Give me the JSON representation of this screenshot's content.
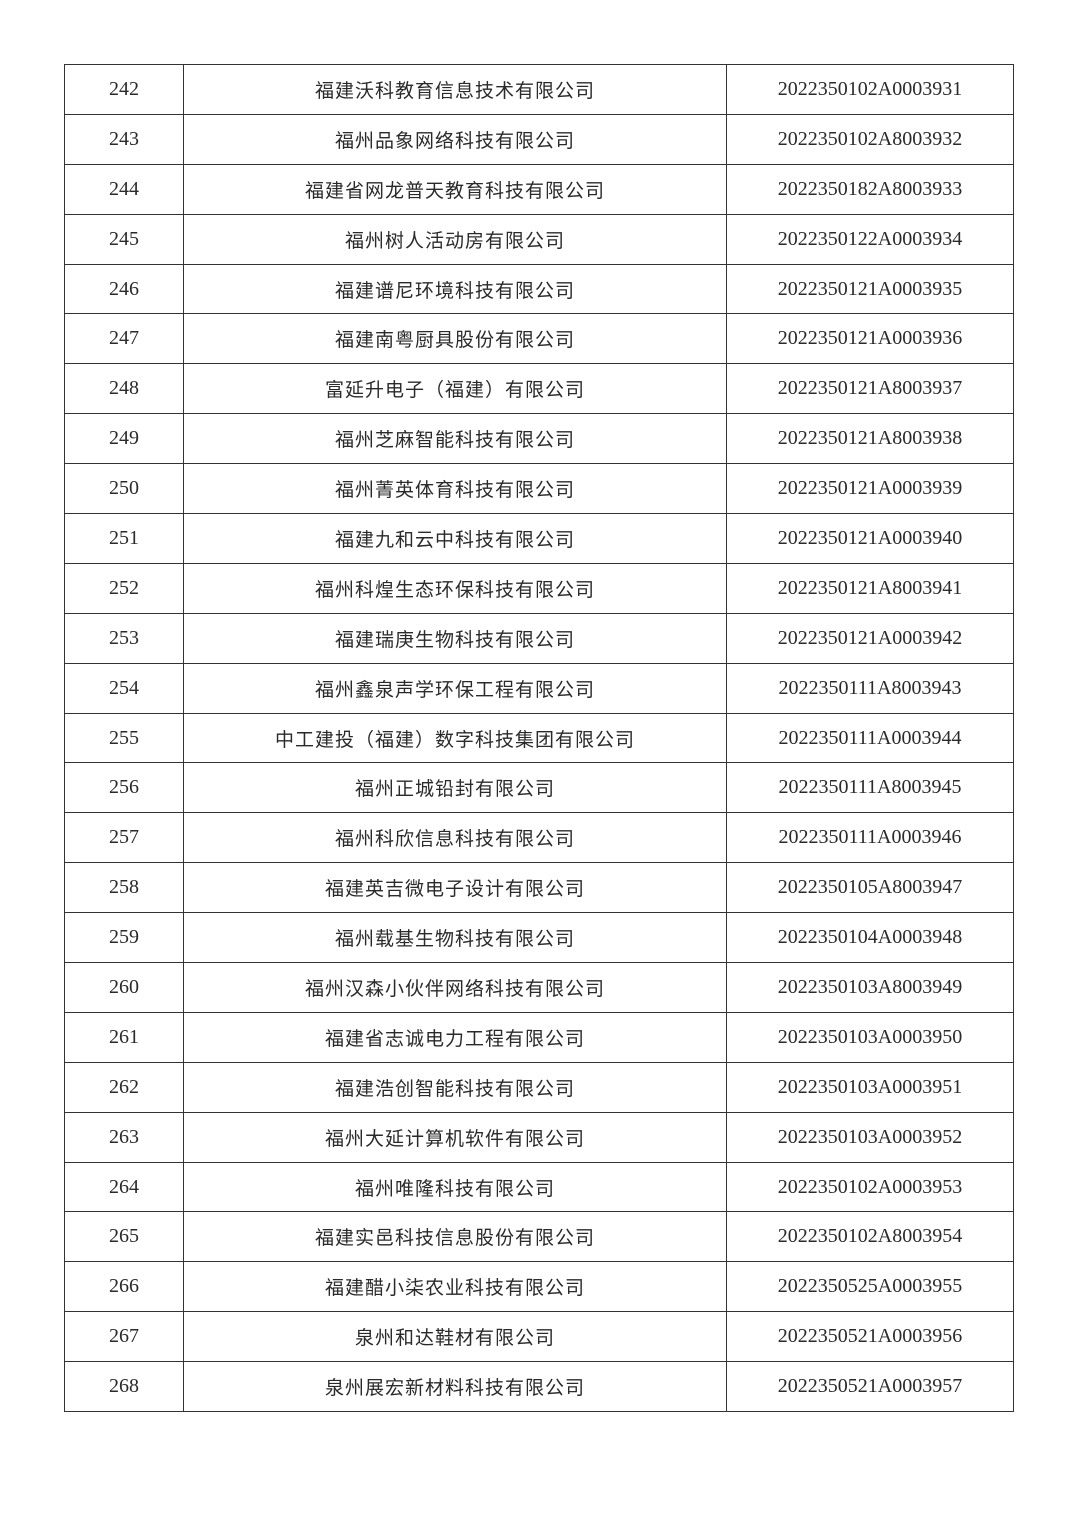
{
  "table": {
    "rows": [
      {
        "no": "242",
        "name": "福建沃科教育信息技术有限公司",
        "code": "2022350102A0003931"
      },
      {
        "no": "243",
        "name": "福州品象网络科技有限公司",
        "code": "2022350102A8003932"
      },
      {
        "no": "244",
        "name": "福建省网龙普天教育科技有限公司",
        "code": "2022350182A8003933"
      },
      {
        "no": "245",
        "name": "福州树人活动房有限公司",
        "code": "2022350122A0003934"
      },
      {
        "no": "246",
        "name": "福建谱尼环境科技有限公司",
        "code": "2022350121A0003935"
      },
      {
        "no": "247",
        "name": "福建南粤厨具股份有限公司",
        "code": "2022350121A0003936"
      },
      {
        "no": "248",
        "name": "富延升电子（福建）有限公司",
        "code": "2022350121A8003937"
      },
      {
        "no": "249",
        "name": "福州芝麻智能科技有限公司",
        "code": "2022350121A8003938"
      },
      {
        "no": "250",
        "name": "福州菁英体育科技有限公司",
        "code": "2022350121A0003939"
      },
      {
        "no": "251",
        "name": "福建九和云中科技有限公司",
        "code": "2022350121A0003940"
      },
      {
        "no": "252",
        "name": "福州科煌生态环保科技有限公司",
        "code": "2022350121A8003941"
      },
      {
        "no": "253",
        "name": "福建瑞庚生物科技有限公司",
        "code": "2022350121A0003942"
      },
      {
        "no": "254",
        "name": "福州鑫泉声学环保工程有限公司",
        "code": "2022350111A8003943"
      },
      {
        "no": "255",
        "name": "中工建投（福建）数字科技集团有限公司",
        "code": "2022350111A0003944"
      },
      {
        "no": "256",
        "name": "福州正城铅封有限公司",
        "code": "2022350111A8003945"
      },
      {
        "no": "257",
        "name": "福州科欣信息科技有限公司",
        "code": "2022350111A0003946"
      },
      {
        "no": "258",
        "name": "福建英吉微电子设计有限公司",
        "code": "2022350105A8003947"
      },
      {
        "no": "259",
        "name": "福州载基生物科技有限公司",
        "code": "2022350104A0003948"
      },
      {
        "no": "260",
        "name": "福州汉森小伙伴网络科技有限公司",
        "code": "2022350103A8003949"
      },
      {
        "no": "261",
        "name": "福建省志诚电力工程有限公司",
        "code": "2022350103A0003950"
      },
      {
        "no": "262",
        "name": "福建浩创智能科技有限公司",
        "code": "2022350103A0003951"
      },
      {
        "no": "263",
        "name": "福州大延计算机软件有限公司",
        "code": "2022350103A0003952"
      },
      {
        "no": "264",
        "name": "福州唯隆科技有限公司",
        "code": "2022350102A0003953"
      },
      {
        "no": "265",
        "name": "福建实邑科技信息股份有限公司",
        "code": "2022350102A8003954"
      },
      {
        "no": "266",
        "name": "福建醋小柒农业科技有限公司",
        "code": "2022350525A0003955"
      },
      {
        "no": "267",
        "name": "泉州和达鞋材有限公司",
        "code": "2022350521A0003956"
      },
      {
        "no": "268",
        "name": "泉州展宏新材料科技有限公司",
        "code": "2022350521A0003957"
      }
    ]
  }
}
